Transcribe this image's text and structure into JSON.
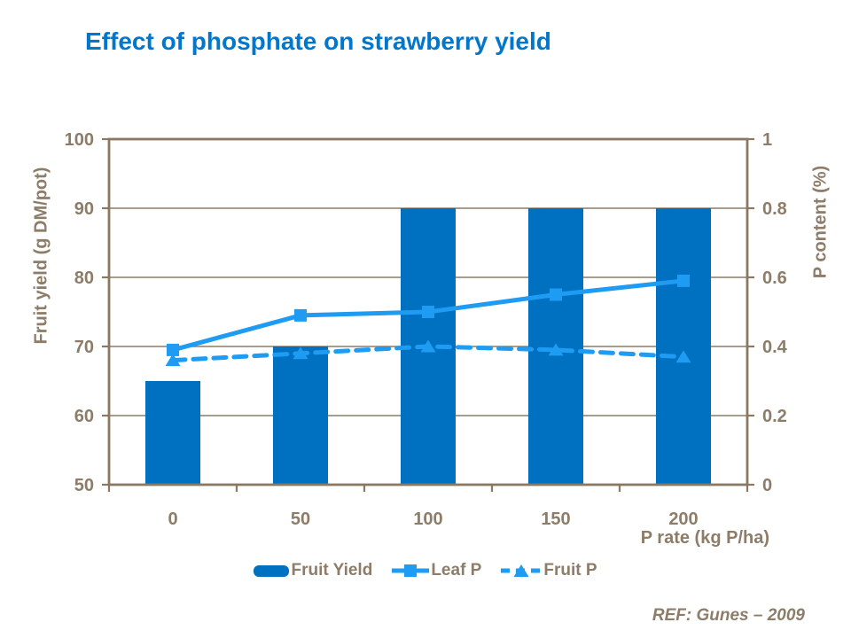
{
  "title": "Effect of phosphate on strawberry yield",
  "reference": "REF: Gunes – 2009",
  "colors": {
    "title": "#0077CD",
    "bar": "#0070C0",
    "line": "#1E9BF3",
    "text": "#8C7C68",
    "frame": "#8A7862",
    "grid": "#8C7C68",
    "background": "#FFFFFF"
  },
  "chart_data": {
    "type": "combo",
    "title": "Effect of phosphate on strawberry yield",
    "categories": [
      "0",
      "50",
      "100",
      "150",
      "200"
    ],
    "series": [
      {
        "name": "Fruit Yield",
        "type": "bar",
        "axis": "left",
        "marker": "none",
        "line_style": "none",
        "values": [
          65,
          70,
          90,
          90,
          90
        ]
      },
      {
        "name": "Leaf P",
        "type": "line",
        "axis": "right",
        "marker": "square",
        "line_style": "solid",
        "values": [
          0.39,
          0.49,
          0.5,
          0.55,
          0.59
        ]
      },
      {
        "name": "Fruit P",
        "type": "line",
        "axis": "right",
        "marker": "triangle",
        "line_style": "dashed",
        "values": [
          0.36,
          0.38,
          0.4,
          0.39,
          0.37
        ]
      }
    ],
    "x_axis": {
      "label": "P rate (kg P/ha)"
    },
    "left_axis": {
      "label": "Fruit yield (g DM/pot)",
      "min": 50,
      "max": 100,
      "tick_labels": [
        "100",
        "90",
        "80",
        "70",
        "60",
        "50"
      ]
    },
    "right_axis": {
      "label": "P content (%)",
      "min": 0,
      "max": 1,
      "tick_labels": [
        "1",
        "0.8",
        "0.6",
        "0.4",
        "0.2",
        "0"
      ]
    },
    "grid": "horizontal",
    "legend_position": "bottom"
  }
}
